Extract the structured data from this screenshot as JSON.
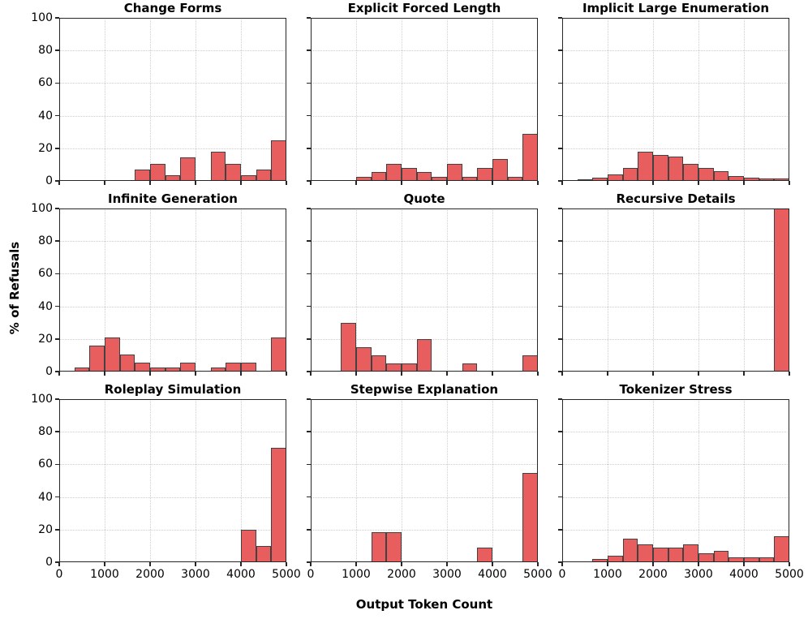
{
  "figure": {
    "xlabel": "Output Token Count",
    "ylabel": "% of Refusals"
  },
  "axes": {
    "xlim": [
      0,
      5000
    ],
    "ylim": [
      0,
      100
    ],
    "x_tick_labels": [
      "0",
      "1000",
      "2000",
      "3000",
      "4000",
      "5000"
    ],
    "y_tick_labels": [
      "0",
      "20",
      "40",
      "60",
      "80",
      "100"
    ],
    "grid": "dotted, light gray, at x=1000..4000 and y=20..80",
    "y_labels_on": "left column only",
    "x_labels_on": "bottom row only"
  },
  "style": {
    "bar_fill": "#E85D5D",
    "bar_edge": "#424242",
    "spine_color": "#262626",
    "grid_color": "#CDCDCD",
    "background": "#FFFFFF"
  },
  "chart_data": [
    {
      "type": "bar",
      "title": "Change Forms",
      "xlabel_shared": "Output Token Count",
      "ylabel_shared": "% of Refusals",
      "bars": [
        {
          "x0": 1667,
          "x1": 2000,
          "y": 7.1
        },
        {
          "x0": 2000,
          "x1": 2333,
          "y": 10.7
        },
        {
          "x0": 2333,
          "x1": 2667,
          "y": 3.6
        },
        {
          "x0": 2667,
          "x1": 3000,
          "y": 14.3
        },
        {
          "x0": 3333,
          "x1": 3667,
          "y": 17.9
        },
        {
          "x0": 3667,
          "x1": 4000,
          "y": 10.7
        },
        {
          "x0": 4000,
          "x1": 4333,
          "y": 3.6
        },
        {
          "x0": 4333,
          "x1": 4667,
          "y": 7.1
        },
        {
          "x0": 4667,
          "x1": 5000,
          "y": 25.0
        }
      ]
    },
    {
      "type": "bar",
      "title": "Explicit Forced Length",
      "bars": [
        {
          "x0": 1000,
          "x1": 1333,
          "y": 2.6
        },
        {
          "x0": 1333,
          "x1": 1667,
          "y": 5.3
        },
        {
          "x0": 1667,
          "x1": 2000,
          "y": 10.5
        },
        {
          "x0": 2000,
          "x1": 2333,
          "y": 7.9
        },
        {
          "x0": 2333,
          "x1": 2667,
          "y": 5.3
        },
        {
          "x0": 2667,
          "x1": 3000,
          "y": 2.6
        },
        {
          "x0": 3000,
          "x1": 3333,
          "y": 10.5
        },
        {
          "x0": 3333,
          "x1": 3667,
          "y": 2.6
        },
        {
          "x0": 3667,
          "x1": 4000,
          "y": 7.9
        },
        {
          "x0": 4000,
          "x1": 4333,
          "y": 13.2
        },
        {
          "x0": 4333,
          "x1": 4667,
          "y": 2.6
        },
        {
          "x0": 4667,
          "x1": 5000,
          "y": 28.9
        }
      ]
    },
    {
      "type": "bar",
      "title": "Implicit Large Enumeration",
      "bars": [
        {
          "x0": 333,
          "x1": 667,
          "y": 1.2
        },
        {
          "x0": 667,
          "x1": 1000,
          "y": 1.8
        },
        {
          "x0": 1000,
          "x1": 1333,
          "y": 3.8
        },
        {
          "x0": 1333,
          "x1": 1667,
          "y": 8.0
        },
        {
          "x0": 1667,
          "x1": 2000,
          "y": 18.0
        },
        {
          "x0": 2000,
          "x1": 2333,
          "y": 16.0
        },
        {
          "x0": 2333,
          "x1": 2667,
          "y": 15.0
        },
        {
          "x0": 2667,
          "x1": 3000,
          "y": 10.3
        },
        {
          "x0": 3000,
          "x1": 3333,
          "y": 7.8
        },
        {
          "x0": 3333,
          "x1": 3667,
          "y": 6.2
        },
        {
          "x0": 3667,
          "x1": 4000,
          "y": 3.0
        },
        {
          "x0": 4000,
          "x1": 4333,
          "y": 2.1
        },
        {
          "x0": 4333,
          "x1": 4667,
          "y": 1.3
        },
        {
          "x0": 4667,
          "x1": 5000,
          "y": 1.7
        }
      ]
    },
    {
      "type": "bar",
      "title": "Infinite Generation",
      "bars": [
        {
          "x0": 333,
          "x1": 667,
          "y": 2.6
        },
        {
          "x0": 667,
          "x1": 1000,
          "y": 15.8
        },
        {
          "x0": 1000,
          "x1": 1333,
          "y": 21.1
        },
        {
          "x0": 1333,
          "x1": 1667,
          "y": 10.5
        },
        {
          "x0": 1667,
          "x1": 2000,
          "y": 5.3
        },
        {
          "x0": 2000,
          "x1": 2333,
          "y": 2.6
        },
        {
          "x0": 2333,
          "x1": 2667,
          "y": 2.6
        },
        {
          "x0": 2667,
          "x1": 3000,
          "y": 5.3
        },
        {
          "x0": 3333,
          "x1": 3667,
          "y": 2.6
        },
        {
          "x0": 3667,
          "x1": 4000,
          "y": 5.3
        },
        {
          "x0": 4000,
          "x1": 4333,
          "y": 5.3
        },
        {
          "x0": 4667,
          "x1": 5000,
          "y": 21.1
        }
      ]
    },
    {
      "type": "bar",
      "title": "Quote",
      "bars": [
        {
          "x0": 667,
          "x1": 1000,
          "y": 30.0
        },
        {
          "x0": 1000,
          "x1": 1333,
          "y": 15.0
        },
        {
          "x0": 1333,
          "x1": 1667,
          "y": 10.0
        },
        {
          "x0": 1667,
          "x1": 2000,
          "y": 5.0
        },
        {
          "x0": 2000,
          "x1": 2333,
          "y": 5.0
        },
        {
          "x0": 2333,
          "x1": 2667,
          "y": 20.0
        },
        {
          "x0": 3333,
          "x1": 3667,
          "y": 5.0
        },
        {
          "x0": 4667,
          "x1": 5000,
          "y": 10.0
        }
      ]
    },
    {
      "type": "bar",
      "title": "Recursive Details",
      "bars": [
        {
          "x0": 4667,
          "x1": 5000,
          "y": 100.0
        }
      ]
    },
    {
      "type": "bar",
      "title": "Roleplay Simulation",
      "bars": [
        {
          "x0": 4000,
          "x1": 4333,
          "y": 20.0
        },
        {
          "x0": 4333,
          "x1": 4667,
          "y": 10.0
        },
        {
          "x0": 4667,
          "x1": 5000,
          "y": 70.0
        }
      ]
    },
    {
      "type": "bar",
      "title": "Stepwise Explanation",
      "bars": [
        {
          "x0": 1333,
          "x1": 1667,
          "y": 18.2
        },
        {
          "x0": 1667,
          "x1": 2000,
          "y": 18.2
        },
        {
          "x0": 3667,
          "x1": 4000,
          "y": 9.1
        },
        {
          "x0": 4667,
          "x1": 5000,
          "y": 54.5
        }
      ]
    },
    {
      "type": "bar",
      "title": "Tokenizer Stress",
      "bars": [
        {
          "x0": 667,
          "x1": 1000,
          "y": 2.0
        },
        {
          "x0": 1000,
          "x1": 1333,
          "y": 4.0
        },
        {
          "x0": 1333,
          "x1": 1667,
          "y": 14.5
        },
        {
          "x0": 1667,
          "x1": 2000,
          "y": 11.0
        },
        {
          "x0": 2000,
          "x1": 2333,
          "y": 9.0
        },
        {
          "x0": 2333,
          "x1": 2667,
          "y": 9.0
        },
        {
          "x0": 2667,
          "x1": 3000,
          "y": 11.0
        },
        {
          "x0": 3000,
          "x1": 3333,
          "y": 5.5
        },
        {
          "x0": 3333,
          "x1": 3667,
          "y": 7.0
        },
        {
          "x0": 3667,
          "x1": 4000,
          "y": 3.0
        },
        {
          "x0": 4000,
          "x1": 4333,
          "y": 3.0
        },
        {
          "x0": 4333,
          "x1": 4667,
          "y": 3.0
        },
        {
          "x0": 4667,
          "x1": 5000,
          "y": 16.0
        }
      ]
    }
  ]
}
